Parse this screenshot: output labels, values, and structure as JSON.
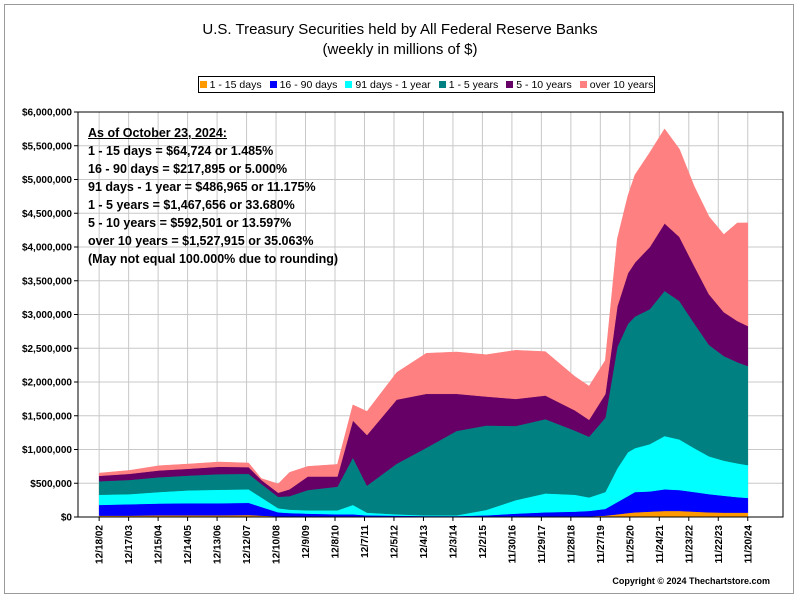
{
  "colors": {
    "plot_bg": "#ffffff",
    "grid": "#c8c8c8",
    "s1": "#ff9900",
    "s2": "#0000ff",
    "s3": "#00ffff",
    "s4": "#008080",
    "s5": "#660066",
    "s6": "#ff8080"
  },
  "annotation": {
    "heading": "As of October 23, 2024:",
    "lines": [
      "1 - 15 days = $64,724 or 1.485%",
      "16 - 90 days = $217,895 or 5.000%",
      "91 days - 1 year = $486,965 or 11.175%",
      "1 - 5 years = $1,467,656 or 33.680%",
      "5 - 10 years = $592,501 or 13.597%",
      "over 10 years = $1,527,915 or 35.063%",
      "(May not equal 100.000% due to rounding)"
    ]
  },
  "copyright": "Copyright © 2024 Thechartstore.com",
  "chart_data": {
    "type": "area",
    "stacked": true,
    "title": "U.S. Treasury Securities held by All Federal Reserve Banks",
    "subtitle": "(weekly in millions of $)",
    "xlabel": "",
    "ylabel": "",
    "ylim": [
      0,
      6000000
    ],
    "ytick_values": [
      0,
      500000,
      1000000,
      1500000,
      2000000,
      2500000,
      3000000,
      3500000,
      4000000,
      4500000,
      5000000,
      5500000,
      6000000
    ],
    "ytick_labels": [
      "$0",
      "$500,000",
      "$1,000,000",
      "$1,500,000",
      "$2,000,000",
      "$2,500,000",
      "$3,000,000",
      "$3,500,000",
      "$4,000,000",
      "$4,500,000",
      "$5,000,000",
      "$5,500,000",
      "$6,000,000"
    ],
    "xticks": [
      "12/18/02",
      "12/17/03",
      "12/15/04",
      "12/14/05",
      "12/13/06",
      "12/12/07",
      "12/10/08",
      "12/9/09",
      "12/8/10",
      "12/7/11",
      "12/5/12",
      "12/4/13",
      "12/3/14",
      "12/2/15",
      "11/30/16",
      "11/29/17",
      "11/28/18",
      "11/27/19",
      "11/25/20",
      "11/24/21",
      "11/23/22",
      "11/22/23",
      "11/20/24"
    ],
    "grid": true,
    "legend_position": "top",
    "x": [
      "Dec 2002",
      "Dec 2003",
      "Dec 2004",
      "Dec 2005",
      "Dec 2006",
      "Dec 2007",
      "Mar 2008",
      "Dec 2008",
      "Mar 2009",
      "Dec 2009",
      "Dec 2010",
      "Jun 2011",
      "Dec 2011",
      "Dec 2012",
      "Dec 2013",
      "Dec 2014",
      "Dec 2015",
      "Dec 2016",
      "Dec 2017",
      "Dec 2018",
      "Sep 2019",
      "Dec 2019",
      "Mar 2020",
      "Jun 2020",
      "Dec 2020",
      "Jun 2021",
      "Dec 2021",
      "Jun 2022",
      "Dec 2022",
      "Jun 2023",
      "Dec 2023",
      "Jun 2024",
      "Oct 2024"
    ],
    "series": [
      {
        "name": "1 - 15 days",
        "color": "#ff9900",
        "values": [
          20000,
          20000,
          25000,
          25000,
          25000,
          30000,
          20000,
          10000,
          10000,
          10000,
          10000,
          10000,
          5000,
          5000,
          5000,
          5000,
          5000,
          10000,
          10000,
          10000,
          10000,
          20000,
          40000,
          60000,
          70000,
          80000,
          90000,
          90000,
          80000,
          70000,
          65000,
          65000,
          64724
        ]
      },
      {
        "name": "16 - 90 days",
        "color": "#0000ff",
        "values": [
          160000,
          170000,
          175000,
          180000,
          180000,
          180000,
          130000,
          60000,
          50000,
          40000,
          30000,
          30000,
          20000,
          15000,
          10000,
          10000,
          20000,
          40000,
          60000,
          70000,
          80000,
          100000,
          180000,
          250000,
          300000,
          300000,
          320000,
          310000,
          290000,
          270000,
          250000,
          230000,
          217895
        ]
      },
      {
        "name": "91 days - 1 year",
        "color": "#00ffff",
        "values": [
          150000,
          150000,
          170000,
          190000,
          200000,
          200000,
          140000,
          60000,
          50000,
          50000,
          60000,
          140000,
          40000,
          20000,
          10000,
          10000,
          80000,
          200000,
          280000,
          250000,
          200000,
          250000,
          500000,
          650000,
          650000,
          700000,
          790000,
          750000,
          650000,
          560000,
          520000,
          500000,
          486965
        ]
      },
      {
        "name": "1 - 5 years",
        "color": "#008080",
        "values": [
          200000,
          210000,
          220000,
          220000,
          230000,
          230000,
          200000,
          170000,
          200000,
          300000,
          350000,
          700000,
          400000,
          750000,
          1000000,
          1250000,
          1250000,
          1100000,
          1100000,
          950000,
          900000,
          1100000,
          1800000,
          1900000,
          1950000,
          2000000,
          2150000,
          2050000,
          1850000,
          1650000,
          1550000,
          1500000,
          1467656
        ]
      },
      {
        "name": "5 - 10 years",
        "color": "#660066",
        "values": [
          80000,
          90000,
          100000,
          100000,
          110000,
          100000,
          60000,
          60000,
          100000,
          200000,
          150000,
          550000,
          750000,
          950000,
          800000,
          550000,
          430000,
          400000,
          350000,
          300000,
          250000,
          350000,
          600000,
          750000,
          800000,
          920000,
          1000000,
          950000,
          850000,
          750000,
          650000,
          610000,
          592501
        ]
      },
      {
        "name": "over 10 years",
        "color": "#ff8080",
        "values": [
          40000,
          50000,
          70000,
          70000,
          70000,
          60000,
          20000,
          130000,
          250000,
          150000,
          180000,
          230000,
          350000,
          400000,
          600000,
          620000,
          620000,
          720000,
          650000,
          500000,
          500000,
          500000,
          1000000,
          1150000,
          1300000,
          1400000,
          1400000,
          1300000,
          1180000,
          1150000,
          1150000,
          1450000,
          1527915
        ]
      }
    ]
  }
}
